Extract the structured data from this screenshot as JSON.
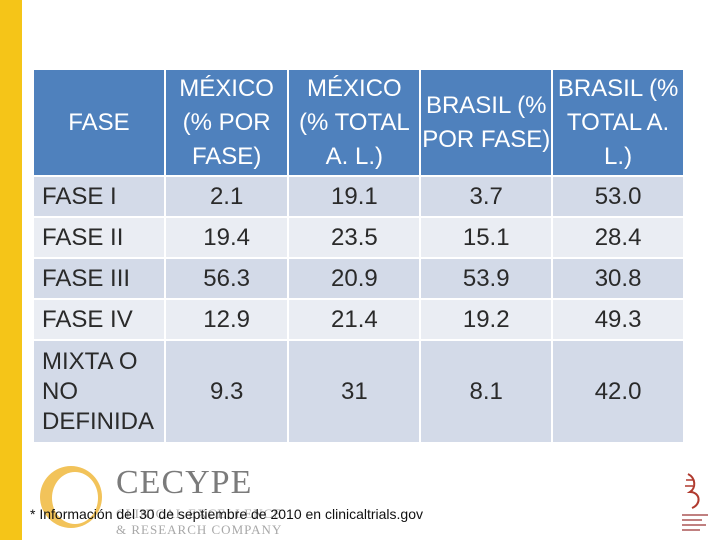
{
  "columns": [
    "FASE",
    "MÉXICO (% POR FASE)",
    "MÉXICO (% TOTAL A. L.)",
    "BRASIL (% POR FASE)",
    "BRASIL (% TOTAL A. L.)"
  ],
  "rows": [
    {
      "label": "FASE I",
      "values": [
        "2.1",
        "19.1",
        "3.7",
        "53.0"
      ]
    },
    {
      "label": "FASE II",
      "values": [
        "19.4",
        "23.5",
        "15.1",
        "28.4"
      ]
    },
    {
      "label": "FASE III",
      "values": [
        "56.3",
        "20.9",
        "53.9",
        "30.8"
      ]
    },
    {
      "label": "FASE IV",
      "values": [
        "12.9",
        "21.4",
        "19.2",
        "49.3"
      ]
    },
    {
      "label": "MIXTA O NO DEFINIDA",
      "values": [
        "9.3",
        "31",
        "8.1",
        "42.0"
      ]
    }
  ],
  "logo": {
    "name": "CECYPE",
    "line1": "CLINICAL EXCELLENCE",
    "line2": "& RESEARCH COMPANY"
  },
  "footnote": "* Información del 30 de septiembre de 2010 en clinicaltrials.gov",
  "colors": {
    "header": "#4f81bd",
    "band": "#d3dae8",
    "plain": "#eaedf3",
    "accent": "#f5c518"
  }
}
